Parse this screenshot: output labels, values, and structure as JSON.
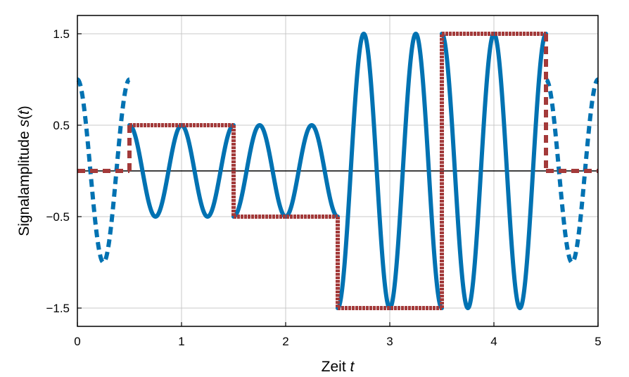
{
  "chart_data": {
    "type": "line",
    "xlabel": "Zeit t",
    "ylabel": "Signalamplitude s(t)",
    "xlim": [
      0,
      5
    ],
    "ylim": [
      -1.7,
      1.7
    ],
    "x_ticks": [
      0,
      1,
      2,
      3,
      4,
      5
    ],
    "x_tick_labels": [
      "0",
      "1",
      "2",
      "3",
      "4",
      "5"
    ],
    "y_ticks": [
      1.5,
      0.5,
      -0.5,
      -1.5
    ],
    "y_tick_labels": [
      "1.5",
      "0.5",
      "−0.5",
      "−1.5"
    ],
    "grid": true,
    "zero_line": true,
    "carrier_frequency": 2,
    "symbol_duration": 1,
    "series": [
      {
        "role": "modulated-signal",
        "color": "#0072b2",
        "style": "solid within symbols 0.5–4.5, dashed outside",
        "segments": [
          {
            "x_start": 0,
            "x_end": 0.5,
            "amplitude": 1.0,
            "dashed": true
          },
          {
            "x_start": 0.5,
            "x_end": 1.5,
            "amplitude": 0.5,
            "dashed": false
          },
          {
            "x_start": 1.5,
            "x_end": 2.5,
            "amplitude": -0.5,
            "dashed": false
          },
          {
            "x_start": 2.5,
            "x_end": 3.5,
            "amplitude": -1.5,
            "dashed": false
          },
          {
            "x_start": 3.5,
            "x_end": 4.5,
            "amplitude": 1.5,
            "dashed": false
          },
          {
            "x_start": 4.5,
            "x_end": 5,
            "amplitude": 1.0,
            "dashed": true
          }
        ]
      },
      {
        "role": "symbol-amplitude",
        "color": "#a33a3a",
        "style": "step, dashed outside symbols",
        "steps": [
          {
            "x_start": 0,
            "x_end": 0.5,
            "value": 0,
            "dashed": true
          },
          {
            "x_start": 0.5,
            "x_end": 1.5,
            "value": 0.5,
            "dashed": false
          },
          {
            "x_start": 1.5,
            "x_end": 2.5,
            "value": -0.5,
            "dashed": false
          },
          {
            "x_start": 2.5,
            "x_end": 3.5,
            "value": -1.5,
            "dashed": false
          },
          {
            "x_start": 3.5,
            "x_end": 4.5,
            "value": 1.5,
            "dashed": false
          },
          {
            "x_start": 4.5,
            "x_end": 5,
            "value": 0,
            "dashed": true
          }
        ]
      }
    ]
  }
}
